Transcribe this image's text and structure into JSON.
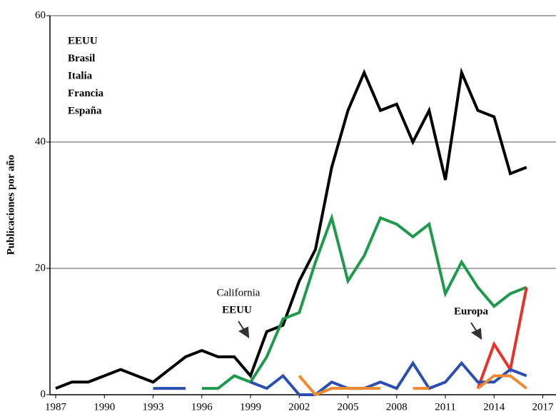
{
  "chart_data": {
    "type": "line",
    "ylabel": "Publicaciones por año",
    "x": [
      1987,
      1988,
      1989,
      1990,
      1991,
      1992,
      1993,
      1994,
      1995,
      1996,
      1997,
      1998,
      1999,
      2000,
      2001,
      2002,
      2003,
      2004,
      2005,
      2006,
      2007,
      2008,
      2009,
      2010,
      2011,
      2012,
      2013,
      2014,
      2015,
      2016
    ],
    "series": [
      {
        "name": "EEUU",
        "color": "#000000",
        "values": [
          1,
          2,
          2,
          3,
          4,
          3,
          2,
          4,
          6,
          7,
          6,
          6,
          3,
          10,
          11,
          18,
          23,
          36,
          45,
          51,
          45,
          46,
          40,
          45,
          34,
          51,
          45,
          44,
          35,
          36
        ]
      },
      {
        "name": "Brasil",
        "color": "#1f9a4c",
        "values": [
          null,
          null,
          null,
          null,
          null,
          null,
          null,
          null,
          null,
          1,
          1,
          3,
          2,
          6,
          12,
          13,
          21,
          28,
          18,
          22,
          28,
          27,
          25,
          27,
          16,
          21,
          17,
          14,
          16,
          17
        ]
      },
      {
        "name": "Italia",
        "color": "#e8312a",
        "values": [
          null,
          null,
          null,
          null,
          null,
          null,
          null,
          null,
          null,
          null,
          null,
          null,
          null,
          null,
          null,
          null,
          null,
          null,
          null,
          null,
          null,
          null,
          null,
          null,
          null,
          null,
          1,
          8,
          4,
          17
        ]
      },
      {
        "name": "Francia",
        "color": "#2a4fae",
        "values": [
          null,
          null,
          null,
          null,
          null,
          null,
          1,
          1,
          1,
          null,
          null,
          null,
          2,
          1,
          3,
          0,
          0,
          2,
          1,
          1,
          2,
          1,
          5,
          1,
          2,
          5,
          2,
          2,
          4,
          3
        ]
      },
      {
        "name": "España",
        "color": "#f08a30",
        "values": [
          null,
          null,
          null,
          null,
          null,
          null,
          null,
          null,
          null,
          null,
          null,
          null,
          null,
          null,
          null,
          3,
          0,
          1,
          1,
          1,
          1,
          null,
          1,
          1,
          null,
          null,
          1,
          3,
          3,
          1
        ]
      }
    ],
    "xlim": [
      1987,
      2017
    ],
    "xticks": [
      1987,
      1990,
      1993,
      1996,
      1999,
      2002,
      2005,
      2008,
      2011,
      2014,
      2017
    ],
    "ylim": [
      0,
      60
    ],
    "yticks": [
      0,
      20,
      40,
      60
    ],
    "grid": true,
    "legend": "upper left",
    "annotations": [
      "California",
      "EEUU",
      "Europa"
    ]
  }
}
